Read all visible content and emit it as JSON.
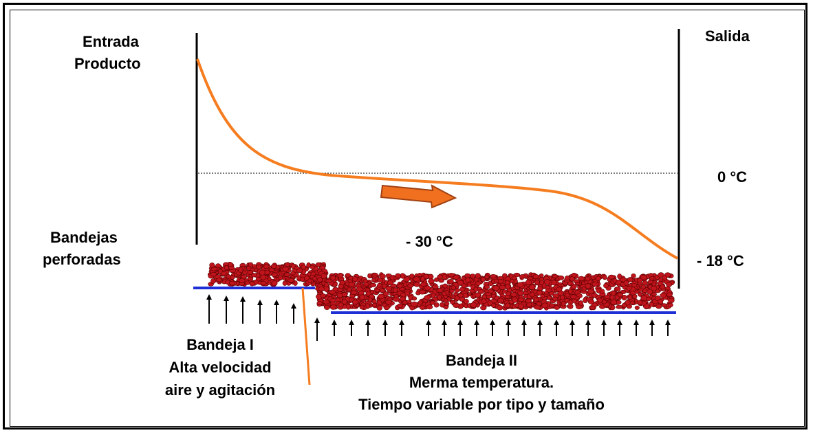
{
  "labels": {
    "entrada": "Entrada",
    "producto": "Producto",
    "salida": "Salida",
    "zero_c": "0 °C",
    "minus30": "- 30 °C",
    "minus18": "- 18 °C",
    "bandejas": "Bandejas",
    "perforadas": "perforadas",
    "bandeja1": {
      "line1": "Bandeja I",
      "line2": "Alta velocidad",
      "line3": "aire y agitación"
    },
    "bandeja2": {
      "line1": "Bandeja II",
      "line2": "Merma temperatura.",
      "line3": "Tiempo variable por tipo y tamaño"
    }
  },
  "colors": {
    "curve": "#f57c1f",
    "arrow_fill": "#f07020",
    "arrow_stroke": "#a04010",
    "tray": "#1f2fd6",
    "product": "#c0141c",
    "product_edge": "#5a0000"
  },
  "tray1_arrow_count": 6,
  "tray2_arrow_count": 22
}
